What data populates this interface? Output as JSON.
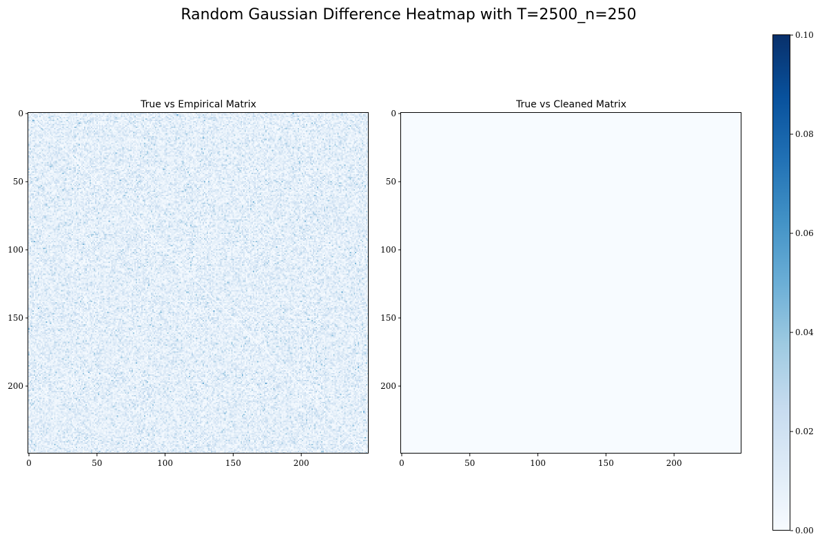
{
  "figure": {
    "title": "Random Gaussian Difference Heatmap with T=2500_n=250"
  },
  "colormap": {
    "name": "Blues",
    "stops": [
      "#f7fbff",
      "#deebf7",
      "#c6dbef",
      "#9ecae1",
      "#6baed6",
      "#4292c6",
      "#2171b5",
      "#08519c",
      "#08306b"
    ]
  },
  "chart_data": [
    {
      "type": "heatmap",
      "title": "True vs Empirical Matrix",
      "rows": 250,
      "cols": 250,
      "xticks": [
        0,
        50,
        100,
        150,
        200
      ],
      "yticks": [
        0,
        50,
        100,
        150,
        200
      ],
      "value_distribution": "random abs-difference noise, mostly 0.00-0.04, occasional peaks near 0.06",
      "typical_max": 0.06,
      "vmin": 0.0,
      "vmax": 0.1
    },
    {
      "type": "heatmap",
      "title": "True vs Cleaned Matrix",
      "rows": 250,
      "cols": 250,
      "xticks": [
        0,
        50,
        100,
        150,
        200
      ],
      "yticks": [
        0,
        50,
        100,
        150,
        200
      ],
      "value_distribution": "uniform near zero",
      "typical_max": 0.0,
      "vmin": 0.0,
      "vmax": 0.1
    }
  ],
  "colorbar": {
    "min": 0.0,
    "max": 0.1,
    "ticks": [
      "0.00",
      "0.02",
      "0.04",
      "0.06",
      "0.08",
      "0.10"
    ]
  }
}
